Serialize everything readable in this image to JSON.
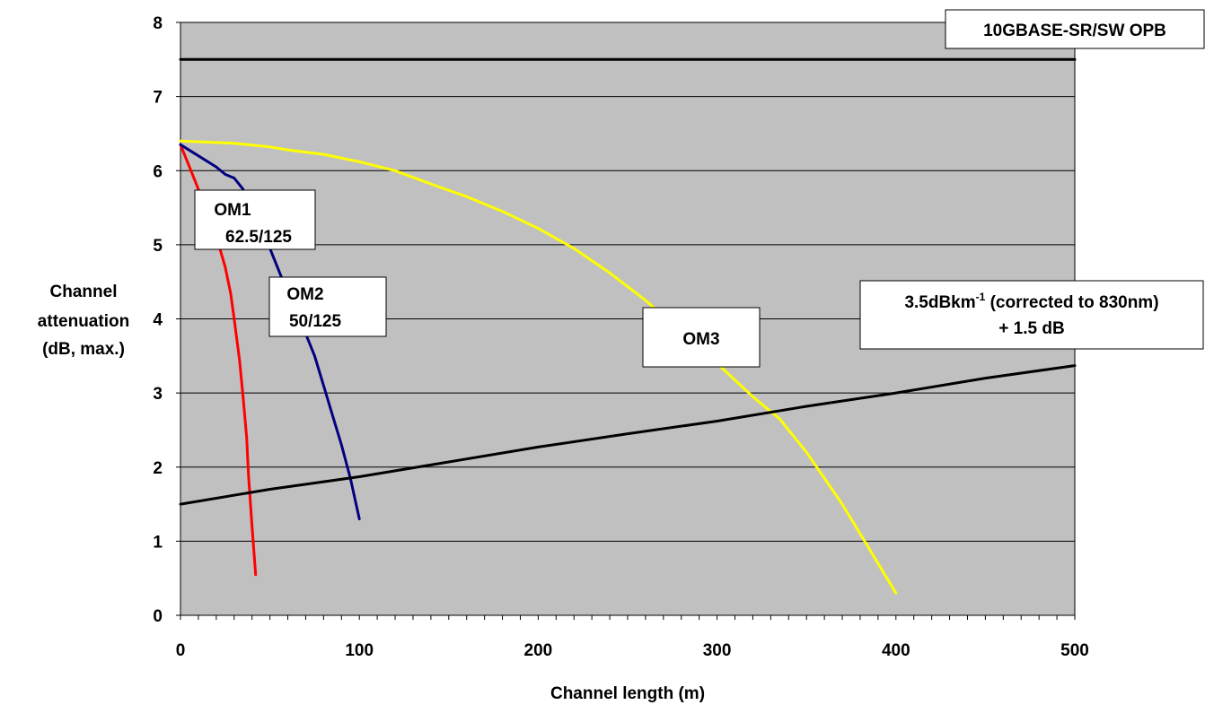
{
  "chart_data": {
    "type": "line",
    "xlabel": "Channel length (m)",
    "ylabel_lines": [
      "Channel",
      "attenuation",
      "(dB, max.)"
    ],
    "xlim": [
      0,
      500
    ],
    "ylim": [
      0,
      8
    ],
    "xticks": [
      0,
      100,
      200,
      300,
      400,
      500
    ],
    "yticks": [
      0,
      1,
      2,
      3,
      4,
      5,
      6,
      7,
      8
    ],
    "grid": "horizontal",
    "plot_background": "#c0c0c0",
    "series": [
      {
        "color": "#ff0000",
        "x": [
          0,
          5,
          10,
          15,
          20,
          22,
          25,
          28,
          30,
          33,
          35,
          37,
          38,
          40,
          42
        ],
        "y": [
          6.35,
          6.05,
          5.75,
          5.45,
          5.1,
          4.95,
          4.7,
          4.35,
          4.0,
          3.45,
          2.95,
          2.4,
          1.9,
          1.2,
          0.55
        ]
      },
      {
        "color": "#000080",
        "x": [
          0,
          10,
          20,
          25,
          30,
          35,
          40,
          50,
          60,
          70,
          75,
          80,
          85,
          90,
          95,
          100
        ],
        "y": [
          6.35,
          6.2,
          6.05,
          5.95,
          5.9,
          5.75,
          5.45,
          4.95,
          4.35,
          3.8,
          3.5,
          3.1,
          2.7,
          2.3,
          1.85,
          1.3
        ]
      },
      {
        "color": "#ffff00",
        "x": [
          0,
          20,
          30,
          50,
          60,
          80,
          100,
          120,
          140,
          160,
          180,
          200,
          220,
          240,
          260,
          280,
          300,
          320,
          335,
          350,
          360,
          370,
          380,
          390,
          400
        ],
        "y": [
          6.4,
          6.38,
          6.37,
          6.32,
          6.28,
          6.22,
          6.12,
          6.0,
          5.82,
          5.65,
          5.45,
          5.22,
          4.95,
          4.62,
          4.25,
          3.82,
          3.4,
          2.95,
          2.65,
          2.2,
          1.85,
          1.5,
          1.1,
          0.7,
          0.3
        ]
      },
      {
        "color": "#000000",
        "x": [
          0,
          50,
          100,
          150,
          200,
          250,
          300,
          350,
          400,
          450,
          500
        ],
        "y": [
          1.5,
          1.7,
          1.87,
          2.07,
          2.27,
          2.45,
          2.62,
          2.82,
          3.0,
          3.2,
          3.37
        ]
      },
      {
        "color": "#000000",
        "x": [
          0,
          500
        ],
        "y": [
          7.5,
          7.5
        ]
      }
    ],
    "annotations": [
      {
        "id": "opb",
        "lines": [
          "10GBASE-SR/SW OPB"
        ]
      },
      {
        "id": "om1",
        "lines": [
          "OM1",
          "62.5/125"
        ]
      },
      {
        "id": "om2",
        "lines": [
          "OM2",
          "50/125"
        ]
      },
      {
        "id": "om3",
        "lines": [
          "OM3"
        ]
      },
      {
        "id": "atten",
        "line1_pre": "3.5dBkm",
        "line1_sup": "-1",
        "line1_post": " (corrected to 830nm)",
        "line2": "+ 1.5 dB"
      }
    ]
  }
}
